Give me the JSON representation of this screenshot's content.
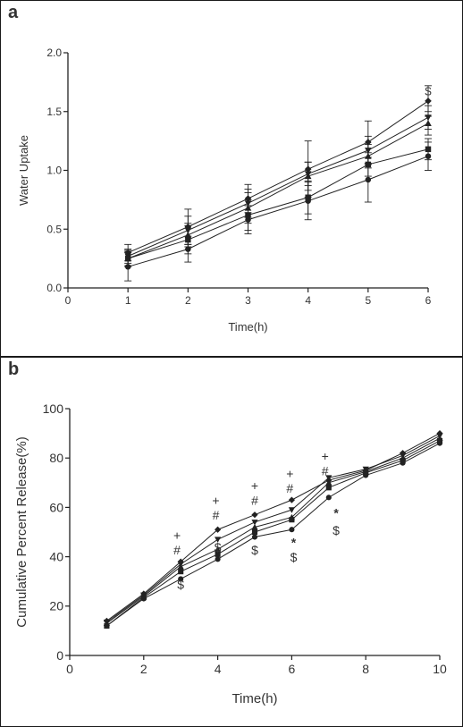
{
  "chart_data": [
    {
      "panel_label": "a",
      "type": "line",
      "xlabel": "Time(h)",
      "ylabel": "Water Uptake",
      "xlim": [
        0,
        6
      ],
      "ylim": [
        0,
        2.0
      ],
      "xticks": [
        "0",
        "1",
        "2",
        "3",
        "4",
        "5",
        "6"
      ],
      "yticks": [
        "0.0",
        "0.5",
        "1.0",
        "1.5",
        "2.0"
      ],
      "xtick_values": [
        0,
        1,
        2,
        3,
        4,
        5,
        6
      ],
      "ytick_values": [
        0,
        0.5,
        1.0,
        1.5,
        2.0
      ],
      "grid": false,
      "x": [
        1,
        2,
        3,
        4,
        5,
        6
      ],
      "series": [
        {
          "marker": "diamond",
          "values": [
            0.3,
            0.52,
            0.76,
            1.01,
            1.24,
            1.59
          ],
          "errors": [
            0.07,
            0.15,
            0.12,
            0.24,
            0.18,
            0.13
          ]
        },
        {
          "marker": "triangle-down",
          "values": [
            0.27,
            0.49,
            0.72,
            0.97,
            1.17,
            1.45
          ],
          "errors": [
            0.06,
            0.12,
            0.12,
            0.1,
            0.12,
            0.1
          ]
        },
        {
          "marker": "triangle-up",
          "values": [
            0.25,
            0.45,
            0.68,
            0.95,
            1.12,
            1.4
          ],
          "errors": [
            0.06,
            0.1,
            0.13,
            0.12,
            0.1,
            0.1
          ]
        },
        {
          "marker": "square",
          "values": [
            0.25,
            0.41,
            0.62,
            0.77,
            1.05,
            1.18
          ],
          "errors": [
            0.07,
            0.12,
            0.13,
            0.14,
            0.1,
            0.09
          ]
        },
        {
          "marker": "circle",
          "values": [
            0.18,
            0.33,
            0.58,
            0.74,
            0.92,
            1.12
          ],
          "errors": [
            0.12,
            0.11,
            0.12,
            0.16,
            0.19,
            0.12
          ]
        }
      ],
      "annotations": [
        {
          "text": "$",
          "x": 6,
          "y": 1.64
        }
      ]
    },
    {
      "panel_label": "b",
      "type": "line",
      "xlabel": "Time(h)",
      "ylabel": "Cumulative Percent Release(%)",
      "xlim": [
        0,
        10
      ],
      "ylim": [
        0,
        100
      ],
      "xticks": [
        "0",
        "2",
        "4",
        "6",
        "8",
        "10"
      ],
      "yticks": [
        "0",
        "20",
        "40",
        "60",
        "80",
        "100"
      ],
      "xtick_values": [
        0,
        2,
        4,
        6,
        8,
        10
      ],
      "ytick_values": [
        0,
        20,
        40,
        60,
        80,
        100
      ],
      "grid": false,
      "x": [
        1,
        2,
        3,
        4,
        5,
        6,
        7,
        8,
        9,
        10
      ],
      "series": [
        {
          "marker": "diamond",
          "values": [
            14,
            25,
            38,
            51,
            57,
            63,
            71,
            75,
            82,
            90
          ]
        },
        {
          "marker": "triangle-down",
          "values": [
            13.5,
            24.5,
            37,
            47,
            54,
            59,
            72,
            75.5,
            81,
            89
          ]
        },
        {
          "marker": "triangle-up",
          "values": [
            13,
            24,
            36,
            43,
            52,
            56,
            70,
            74.5,
            80,
            88
          ]
        },
        {
          "marker": "square",
          "values": [
            12,
            23.5,
            34,
            41,
            50,
            55,
            68,
            74,
            79,
            87
          ]
        },
        {
          "marker": "circle",
          "values": [
            12,
            23,
            31,
            39,
            48,
            51,
            64,
            73,
            78,
            86
          ]
        }
      ],
      "annotations": [
        {
          "text": "+",
          "x": 2.9,
          "y": 47
        },
        {
          "text": "#",
          "x": 2.9,
          "y": 41
        },
        {
          "text": "$",
          "x": 3.0,
          "y": 27
        },
        {
          "text": "+",
          "x": 3.95,
          "y": 61
        },
        {
          "text": "#",
          "x": 3.95,
          "y": 55
        },
        {
          "text": "$",
          "x": 4.0,
          "y": 42
        },
        {
          "text": "+",
          "x": 5.0,
          "y": 67
        },
        {
          "text": "#",
          "x": 5.0,
          "y": 61
        },
        {
          "text": "$",
          "x": 5.0,
          "y": 41
        },
        {
          "text": "+",
          "x": 5.95,
          "y": 72
        },
        {
          "text": "#",
          "x": 5.95,
          "y": 66
        },
        {
          "text": "*",
          "x": 6.05,
          "y": 44
        },
        {
          "text": "$",
          "x": 6.05,
          "y": 38
        },
        {
          "text": "+",
          "x": 6.9,
          "y": 79
        },
        {
          "text": "#",
          "x": 6.9,
          "y": 73
        },
        {
          "text": "*",
          "x": 7.2,
          "y": 56
        },
        {
          "text": "$",
          "x": 7.2,
          "y": 49
        }
      ]
    }
  ]
}
